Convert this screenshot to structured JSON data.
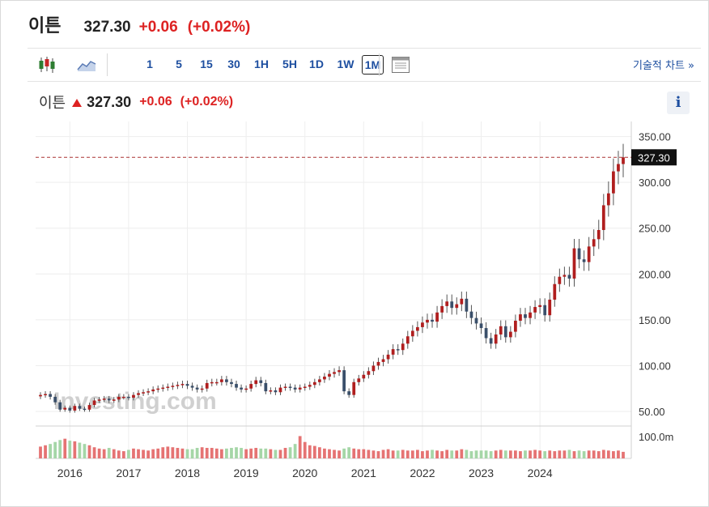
{
  "header": {
    "name": "이튼",
    "price": "327.30",
    "change": "+0.06",
    "change_pct": "(+0.02%)"
  },
  "toolbar": {
    "chart_type_icon": "candlestick-icon",
    "area_icon": "area-chart-icon",
    "intervals": [
      "1",
      "5",
      "15",
      "30",
      "1H",
      "5H",
      "1D",
      "1W",
      "1M"
    ],
    "active_interval": "1M",
    "layout_icon": "layout-icon",
    "technical_link": "기술적 차트 »"
  },
  "legend": {
    "name": "이튼",
    "price": "327.30",
    "change": "+0.06",
    "change_pct": "(+0.02%)"
  },
  "info_label": "i",
  "watermark": "Investing.com",
  "colors": {
    "up": "#b01e1e",
    "down": "#3a4f6a",
    "vol_up": "#e57373",
    "vol_down": "#a5d6a7",
    "accent": "#1e4fa0"
  },
  "chart_data": {
    "type": "candlestick",
    "interval": "1M",
    "y_ticks": [
      "350.00",
      "300.00",
      "250.00",
      "200.00",
      "150.00",
      "100.00",
      "50.00"
    ],
    "ylim": [
      35,
      362
    ],
    "last_price_label": "327.30",
    "last_price": 327.3,
    "volume_tick": "100.0m",
    "x_labels": [
      "2016",
      "2017",
      "2018",
      "2019",
      "2020",
      "2021",
      "2022",
      "2023",
      "2024"
    ],
    "start": "2015-07",
    "closes": [
      68,
      69,
      66,
      60,
      52,
      54,
      51,
      56,
      53,
      52,
      57,
      62,
      63,
      64,
      62,
      63,
      66,
      66,
      65,
      68,
      70,
      71,
      72,
      74,
      75,
      76,
      77,
      78,
      79,
      80,
      78,
      76,
      74,
      75,
      81,
      82,
      82,
      85,
      82,
      80,
      76,
      74,
      75,
      80,
      84,
      81,
      72,
      73,
      71,
      76,
      77,
      76,
      74,
      76,
      77,
      79,
      82,
      85,
      88,
      91,
      93,
      95,
      72,
      68,
      82,
      86,
      90,
      94,
      100,
      104,
      107,
      112,
      118,
      117,
      124,
      132,
      138,
      142,
      147,
      150,
      148,
      158,
      165,
      170,
      163,
      167,
      173,
      159,
      152,
      146,
      141,
      130,
      124,
      134,
      143,
      131,
      137,
      149,
      156,
      152,
      158,
      164,
      166,
      155,
      172,
      189,
      197,
      199,
      195,
      228,
      216,
      213,
      230,
      238,
      248,
      275,
      288,
      312,
      320,
      327.3
    ],
    "volumes": [
      18,
      20,
      22,
      25,
      28,
      30,
      27,
      26,
      24,
      22,
      20,
      17,
      15,
      14,
      16,
      14,
      12,
      11,
      13,
      15,
      14,
      13,
      12,
      14,
      15,
      17,
      18,
      17,
      16,
      15,
      14,
      14,
      16,
      17,
      16,
      16,
      15,
      14,
      15,
      16,
      17,
      16,
      14,
      15,
      16,
      15,
      15,
      14,
      13,
      13,
      16,
      17,
      22,
      34,
      25,
      20,
      19,
      17,
      15,
      14,
      13,
      12,
      15,
      17,
      15,
      14,
      14,
      13,
      12,
      11,
      13,
      14,
      12,
      12,
      13,
      12,
      12,
      13,
      11,
      12,
      13,
      12,
      11,
      13,
      12,
      12,
      14,
      13,
      11,
      12,
      12,
      12,
      11,
      12,
      13,
      12,
      12,
      12,
      11,
      12,
      12,
      13,
      12,
      11,
      12,
      11,
      12,
      12,
      13,
      11,
      12,
      11,
      12,
      12,
      11,
      13,
      12,
      11,
      12,
      10
    ],
    "volume_max": 150
  }
}
